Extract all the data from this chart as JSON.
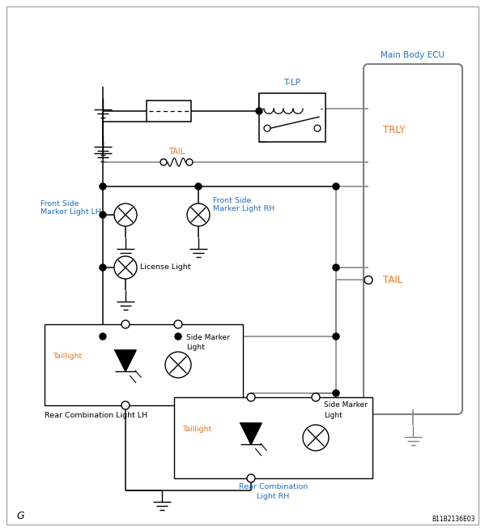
{
  "bg_color": "#ffffff",
  "gray": "#808080",
  "blue": "#1E6FBA",
  "orange": "#E87722",
  "black": "#000000",
  "ecu_label": "Main Body ECU",
  "trly_label": "TRLY",
  "tail_ecu_label": "TAIL",
  "tlp_label": "T-LP",
  "tail_sw_label": "TAIL",
  "front_lh_label": "Front Side\nMarker Light LH",
  "front_rh_label": "Front Side\nMarker Light RH",
  "license_label": "License Light",
  "rear_lh_label": "Rear Combination Light LH",
  "rear_rh_label1": "Rear Combination",
  "rear_rh_label2": "Light RH",
  "taillight_label": "Taillight",
  "side_marker_label1": "Side Marker",
  "side_marker_label2": "Light",
  "g_label": "G",
  "code_label": "B11B2136E03",
  "figw": 5.99,
  "figh": 6.55,
  "dpi": 100
}
